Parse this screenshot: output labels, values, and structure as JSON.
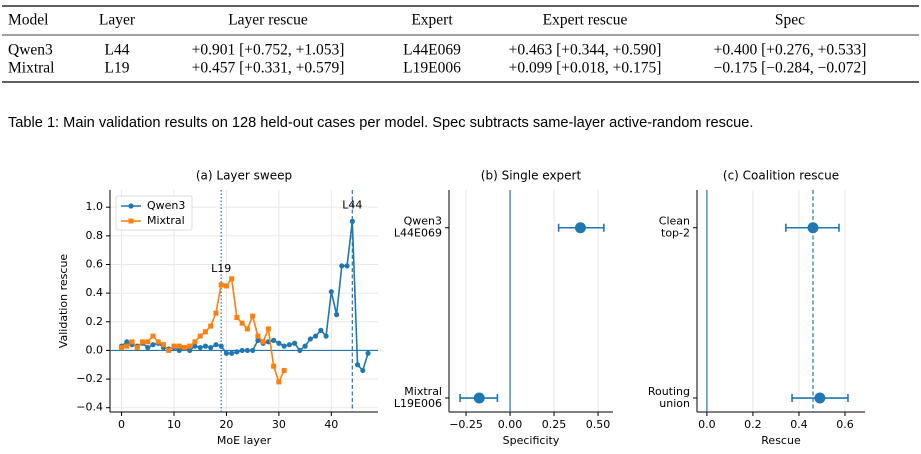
{
  "table": {
    "headers": [
      "Model",
      "Layer",
      "Layer rescue",
      "Expert",
      "Expert rescue",
      "Spec"
    ],
    "rows": [
      [
        "Qwen3",
        "L44",
        "+0.901 [+0.752, +1.053]",
        "L44E069",
        "+0.463 [+0.344, +0.590]",
        "+0.400 [+0.276, +0.533]"
      ],
      [
        "Mixtral",
        "L19",
        "+0.457 [+0.331, +0.579]",
        "L19E006",
        "+0.099 [+0.018, +0.175]",
        "−0.175 [−0.284, −0.072]"
      ]
    ]
  },
  "caption": "Table 1: Main validation results on 128 held-out cases per model. Spec subtracts same-layer active-random rescue.",
  "chart_data": [
    {
      "type": "line",
      "title": "(a) Layer sweep",
      "xlabel": "MoE layer",
      "ylabel": "Validation rescue",
      "x": [
        0,
        1,
        2,
        3,
        4,
        5,
        6,
        7,
        8,
        9,
        10,
        11,
        12,
        13,
        14,
        15,
        16,
        17,
        18,
        19,
        20,
        21,
        22,
        23,
        24,
        25,
        26,
        27,
        28,
        29,
        30,
        31,
        32,
        33,
        34,
        35,
        36,
        37,
        38,
        39,
        40,
        41,
        42,
        43,
        44,
        45,
        46,
        47
      ],
      "series": [
        {
          "name": "Qwen3",
          "color": "#1f77b4",
          "marker": "circle",
          "values": [
            0.03,
            0.06,
            0.04,
            0.03,
            0.05,
            0.02,
            0.04,
            0.05,
            0.02,
            0.01,
            0.02,
            0.0,
            0.02,
            0.0,
            0.03,
            0.02,
            0.03,
            0.02,
            0.04,
            0.03,
            -0.02,
            -0.02,
            -0.01,
            0.0,
            0.0,
            0.0,
            0.07,
            0.05,
            0.06,
            0.07,
            0.05,
            0.03,
            0.04,
            0.05,
            0.0,
            0.03,
            0.08,
            0.1,
            0.14,
            0.1,
            0.41,
            0.25,
            0.59,
            0.59,
            0.901,
            -0.1,
            -0.14,
            -0.02
          ]
        },
        {
          "name": "Mixtral",
          "color": "#ff7f0e",
          "marker": "square",
          "values": [
            0.02,
            0.03,
            0.06,
            0.02,
            0.06,
            0.06,
            0.1,
            0.06,
            0.04,
            0.0,
            0.03,
            0.03,
            0.02,
            0.03,
            0.06,
            0.1,
            0.13,
            0.17,
            0.26,
            0.457,
            0.45,
            0.5,
            0.23,
            0.19,
            0.15,
            0.24,
            0.1,
            0.06,
            0.15,
            -0.11,
            -0.22,
            -0.14,
            null,
            null,
            null,
            null,
            null,
            null,
            null,
            null,
            null,
            null,
            null,
            null,
            null,
            null,
            null,
            null
          ]
        }
      ],
      "xlim": [
        -2.2,
        48.9
      ],
      "xticks": [
        0,
        10,
        20,
        30,
        40
      ],
      "ylim": [
        -0.43,
        1.12
      ],
      "yticks": [
        {
          "value": -0.4,
          "label": "−0.4"
        },
        {
          "value": -0.2,
          "label": "−0.2"
        },
        {
          "value": 0,
          "label": "0.0"
        },
        {
          "value": 0.2,
          "label": "0.2"
        },
        {
          "value": 0.4,
          "label": "0.4"
        },
        {
          "value": 0.6,
          "label": "0.6"
        },
        {
          "value": 0.8,
          "label": "0.8"
        },
        {
          "value": 1.0,
          "label": "1.0"
        }
      ],
      "grid": true,
      "legend": "upper left",
      "vlines": [
        {
          "x": 19,
          "label": "L19",
          "style": "dotted",
          "color": "#1f77b4"
        },
        {
          "x": 44,
          "label": "L44",
          "style": "dashed",
          "color": "#1f77b4"
        }
      ],
      "hlines": [
        {
          "y": 0,
          "style": "solid",
          "color": "#1f77b4"
        }
      ]
    },
    {
      "type": "errorbar",
      "title": "(b) Single expert",
      "xlabel": "Specificity",
      "categories": [
        [
          "Qwen3",
          "L44E069"
        ],
        [
          "Mixtral",
          "L19E006"
        ]
      ],
      "values": [
        0.4,
        -0.175
      ],
      "lower": [
        0.276,
        -0.284
      ],
      "upper": [
        0.533,
        -0.072
      ],
      "color": "#1f77b4",
      "xlim": [
        -0.347,
        0.585
      ],
      "xticks": [
        {
          "value": -0.25,
          "label": "−0.25"
        },
        {
          "value": 0,
          "label": "0.00"
        },
        {
          "value": 0.25,
          "label": "0.25"
        },
        {
          "value": 0.5,
          "label": "0.50"
        }
      ],
      "grid": true,
      "vlines": [
        {
          "x": 0,
          "style": "solid",
          "color": "#1f77b4"
        }
      ]
    },
    {
      "type": "errorbar",
      "title": "(c) Coalition rescue",
      "xlabel": "Rescue",
      "categories": [
        [
          "Clean",
          "top-2"
        ],
        [
          "Routing",
          "union"
        ]
      ],
      "values": [
        0.461,
        0.491
      ],
      "lower": [
        0.343,
        0.37
      ],
      "upper": [
        0.574,
        0.613
      ],
      "color": "#1f77b4",
      "xlim": [
        -0.043,
        0.687
      ],
      "xticks": [
        {
          "value": 0,
          "label": "0.0"
        },
        {
          "value": 0.2,
          "label": "0.2"
        },
        {
          "value": 0.4,
          "label": "0.4"
        },
        {
          "value": 0.6,
          "label": "0.6"
        }
      ],
      "grid": true,
      "vlines": [
        {
          "x": 0,
          "style": "solid",
          "color": "#1f77b4"
        },
        {
          "x": 0.461,
          "style": "dashed",
          "color": "#1f77b4"
        }
      ]
    }
  ]
}
